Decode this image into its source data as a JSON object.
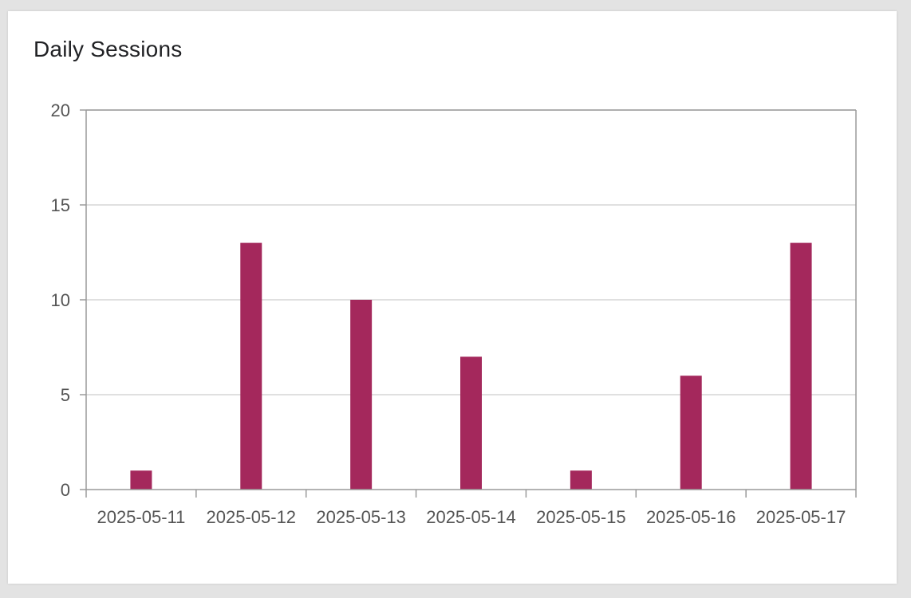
{
  "chart_data": {
    "type": "bar",
    "title": "Daily Sessions",
    "categories": [
      "2025-05-11",
      "2025-05-12",
      "2025-05-13",
      "2025-05-14",
      "2025-05-15",
      "2025-05-16",
      "2025-05-17"
    ],
    "values": [
      1,
      13,
      10,
      7,
      1,
      6,
      13
    ],
    "ylim": [
      0,
      20
    ],
    "yticks": [
      0,
      5,
      10,
      15,
      20
    ],
    "grid": true,
    "xlabel": "",
    "ylabel": "",
    "colors": {
      "bar": "#a4285c",
      "grid": "#d6d6d6",
      "axis": "#9a9a9a"
    }
  }
}
